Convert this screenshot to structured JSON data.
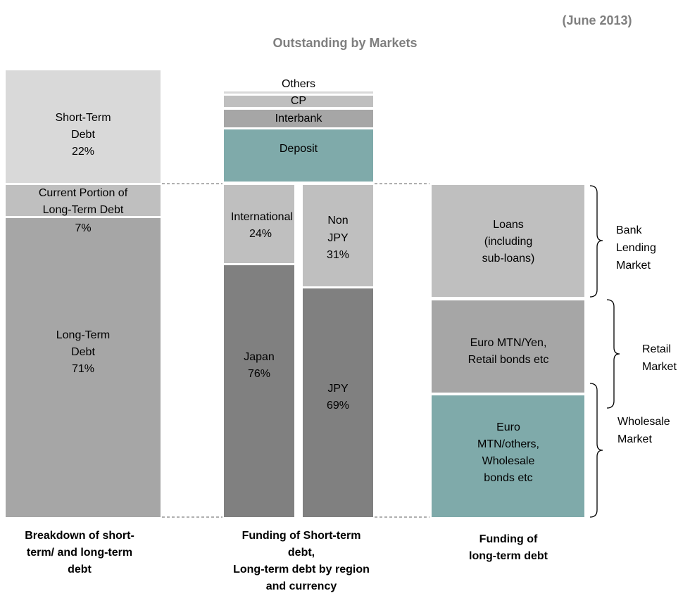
{
  "header": {
    "date": "(June 2013)",
    "title": "Outstanding by Markets"
  },
  "breakdown": {
    "blocks": [
      {
        "label": [
          "Short-Term",
          "Debt",
          "22%"
        ]
      },
      {
        "label": [
          "Current Portion of",
          "Long-Term Debt",
          "7%"
        ]
      },
      {
        "label": [
          "Long-Term",
          "Debt",
          "71%"
        ]
      }
    ],
    "caption": [
      "Breakdown of short-",
      "term/ and long-term",
      "debt"
    ]
  },
  "funding_short": {
    "blocks": [
      {
        "label": [
          "Others"
        ]
      },
      {
        "label": [
          "CP"
        ]
      },
      {
        "label": [
          "Interbank"
        ]
      },
      {
        "label": [
          "Deposit"
        ]
      }
    ],
    "region": [
      {
        "label": [
          "International",
          "24%"
        ]
      },
      {
        "label": [
          "Japan",
          "76%"
        ]
      }
    ],
    "currency": [
      {
        "label": [
          "Non",
          "JPY",
          "31%"
        ]
      },
      {
        "label": [
          "JPY",
          "69%"
        ]
      }
    ],
    "caption": [
      "Funding of Short-term",
      "debt,",
      "Long-term debt by region",
      "and currency"
    ]
  },
  "funding_long": {
    "blocks": [
      {
        "label": [
          "Loans",
          "(including",
          "sub-loans)"
        ]
      },
      {
        "label": [
          "Euro MTN/Yen,",
          "Retail bonds etc"
        ]
      },
      {
        "label": [
          "Euro",
          "MTN/others,",
          "Wholesale",
          "bonds etc"
        ]
      }
    ],
    "markets": [
      {
        "label": [
          "Bank",
          "Lending",
          "Market"
        ]
      },
      {
        "label": [
          "Retail",
          "Market"
        ]
      },
      {
        "label": [
          "Wholesale",
          "Market"
        ]
      }
    ],
    "caption": [
      "Funding of",
      "long-term debt"
    ]
  }
}
